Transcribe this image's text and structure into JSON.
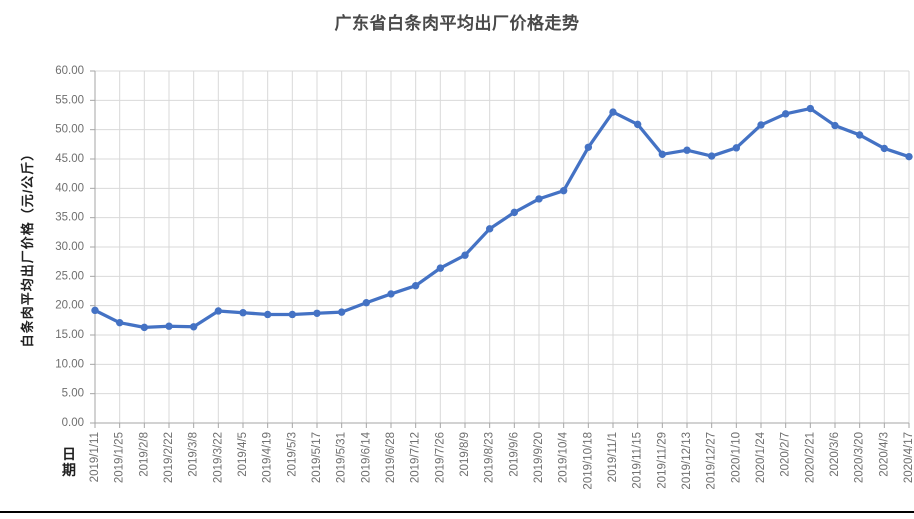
{
  "chart_data": {
    "type": "line",
    "title": "广东省白条肉平均出厂价格走势",
    "ylabel": "白条肉平均出厂价格（元/公斤）",
    "xlabel": "日期",
    "categories": [
      "2019/1/11",
      "2019/1/25",
      "2019/2/8",
      "2019/2/22",
      "2019/3/8",
      "2019/3/22",
      "2019/4/5",
      "2019/4/19",
      "2019/5/3",
      "2019/5/17",
      "2019/5/31",
      "2019/6/14",
      "2019/6/28",
      "2019/7/12",
      "2019/7/26",
      "2019/8/9",
      "2019/8/23",
      "2019/9/6",
      "2019/9/20",
      "2019/10/4",
      "2019/10/18",
      "2019/11/1",
      "2019/11/15",
      "2019/11/29",
      "2019/12/13",
      "2019/12/27",
      "2020/1/10",
      "2020/1/24",
      "2020/2/7",
      "2020/2/21",
      "2020/3/6",
      "2020/3/20",
      "2020/4/3",
      "2020/4/17"
    ],
    "values": [
      19.2,
      17.1,
      16.3,
      16.5,
      16.4,
      19.1,
      18.8,
      18.5,
      18.5,
      18.7,
      18.9,
      20.5,
      22.0,
      23.4,
      26.4,
      28.6,
      33.1,
      35.9,
      38.2,
      39.6,
      47.0,
      53.0,
      50.9,
      45.8,
      46.5,
      45.5,
      46.9,
      50.8,
      52.7,
      53.6,
      50.7,
      49.1,
      46.8,
      45.4
    ],
    "ylim": [
      0,
      60
    ],
    "ytick_step": 5,
    "ytick_decimals": 2,
    "grid": true,
    "legend": "none",
    "marker": "circle",
    "colors": {
      "line": "#4472C4",
      "gridline": "#d9d9d9",
      "axis": "#a6a6a6",
      "tick_label": "#6f6f6f",
      "title": "#494949",
      "axis_title": "#1f1f1f",
      "bottom_rule": "#000000"
    }
  }
}
